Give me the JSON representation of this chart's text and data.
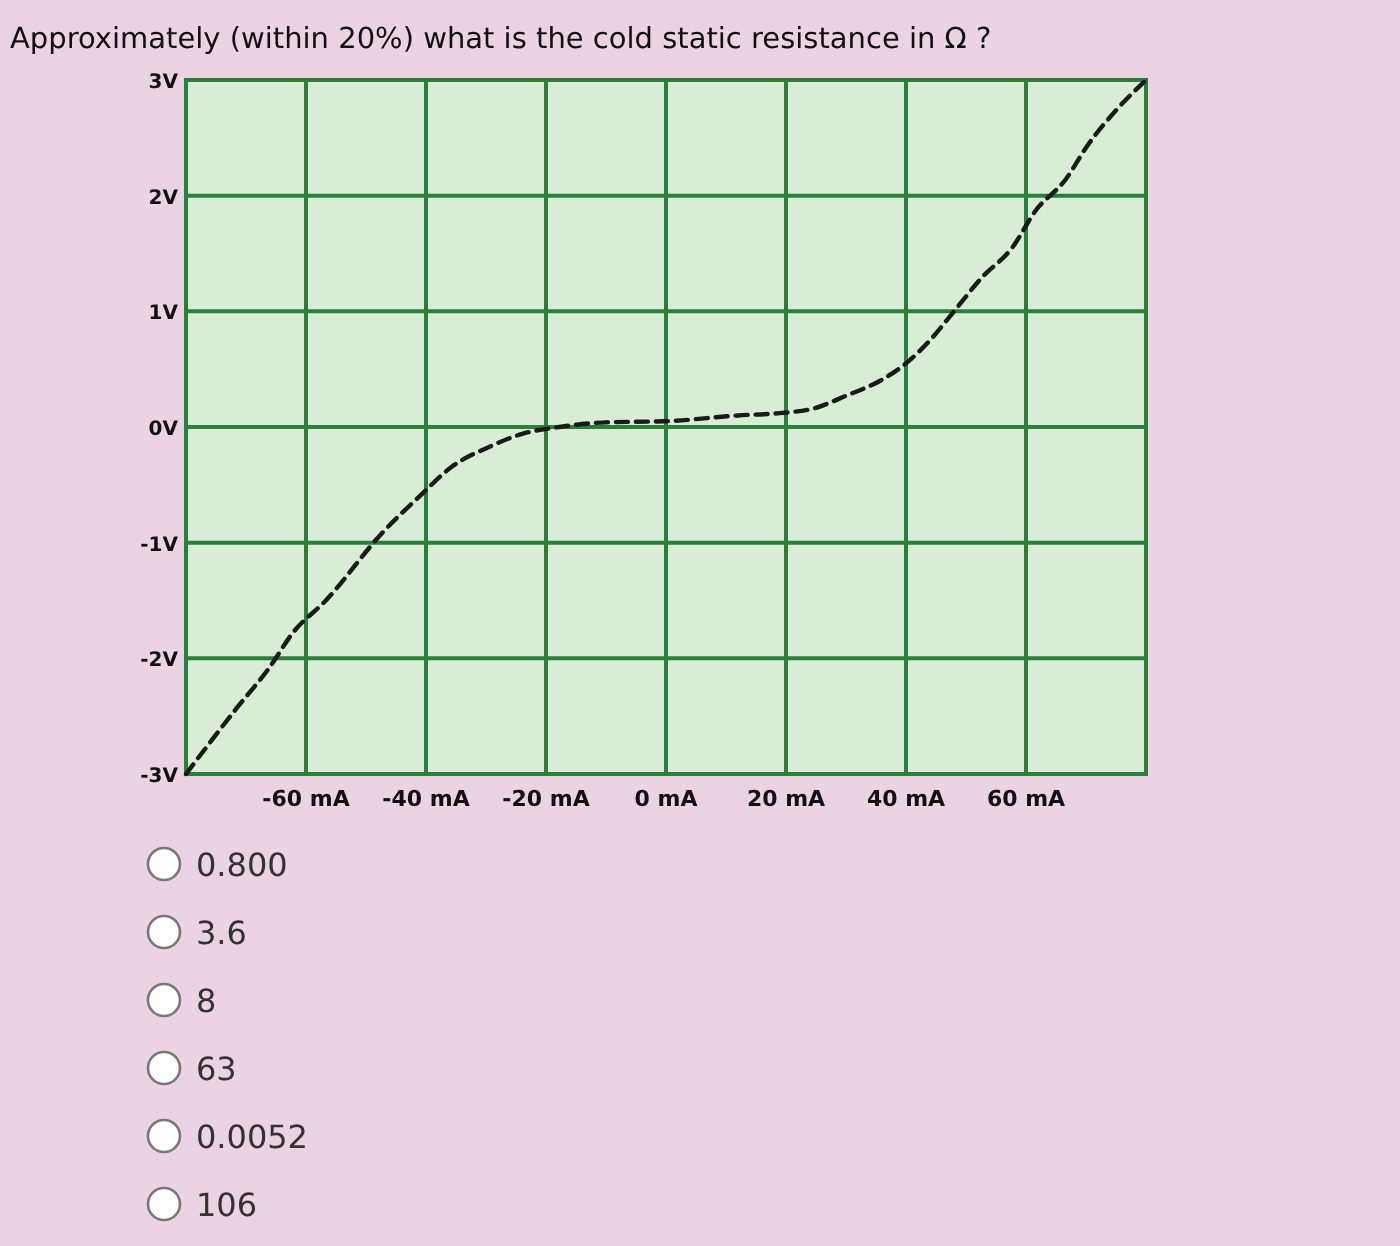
{
  "chart_data": {
    "type": "line",
    "title": "Approximately (within 20%) what is the cold static resistance in Ω ?",
    "x": [
      -80,
      -71.7,
      -66.1,
      -62.2,
      -56.7,
      -47.2,
      -41.1,
      -35.6,
      -29.4,
      -24,
      -17.8,
      -10,
      0,
      12,
      18.9,
      24.6,
      30,
      35.7,
      40,
      44,
      48,
      52.6,
      57.7,
      61.6,
      66.6,
      70.2,
      75.4,
      80
    ],
    "series": [
      {
        "color": "#1a1a1a",
        "values": [
          -3,
          -2.44,
          -2.08,
          -1.78,
          -1.5,
          -0.91,
          -0.6,
          -0.34,
          -0.17,
          -0.06,
          0,
          0.04,
          0.05,
          0.1,
          0.12,
          0.16,
          0.27,
          0.4,
          0.55,
          0.75,
          1.0,
          1.29,
          1.55,
          1.87,
          2.14,
          2.43,
          2.76,
          3
        ]
      }
    ],
    "xlim": [
      -80,
      80
    ],
    "xticks": [
      {
        "value": -60,
        "label": "-60 mA"
      },
      {
        "value": -40,
        "label": "-40 mA"
      },
      {
        "value": -20,
        "label": "-20 mA"
      },
      {
        "value": 0,
        "label": "0 mA"
      },
      {
        "value": 20,
        "label": "20 mA"
      },
      {
        "value": 40,
        "label": "40 mA"
      },
      {
        "value": 60,
        "label": "60 mA"
      }
    ],
    "ylim": [
      -3,
      3
    ],
    "yticks": [
      {
        "value": 3,
        "label": "3V"
      },
      {
        "value": 2,
        "label": "2V"
      },
      {
        "value": 1,
        "label": "1V"
      },
      {
        "value": 0,
        "label": "0V"
      },
      {
        "value": -1,
        "label": "-1V"
      },
      {
        "value": -2,
        "label": "-2V"
      },
      {
        "value": -3,
        "label": "-3V"
      }
    ],
    "grid": true,
    "line_style": "dashed",
    "annotations": [
      "0.800",
      "3.6",
      "8",
      "63",
      "0.0052",
      "106"
    ]
  }
}
